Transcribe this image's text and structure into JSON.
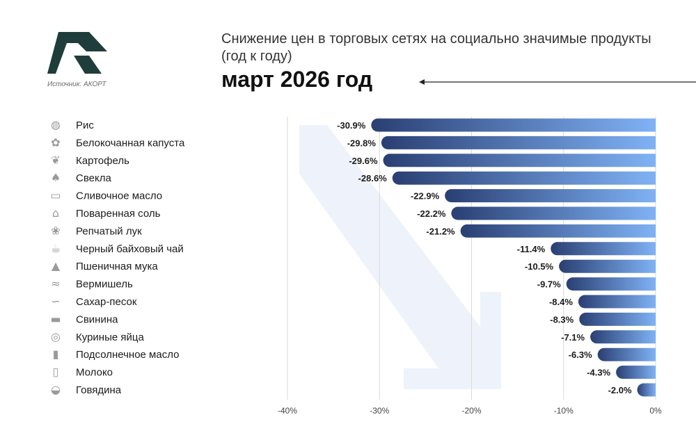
{
  "header": {
    "title": "Снижение цен в торговых сетях на социально значимые продукты (год к году)",
    "subtitle": "март 2026 год",
    "source": "Источник: АКОРТ"
  },
  "colors": {
    "bar_dark": "#2a3f73",
    "bar_light": "#7fb2f5",
    "logo": "#1f3d3a",
    "watermark": "#eef2fa"
  },
  "chart_data": {
    "type": "bar",
    "orientation": "horizontal",
    "categories": [
      "Рис",
      "Белокочанная капуста",
      "Картофель",
      "Свекла",
      "Сливочное масло",
      "Поваренная соль",
      "Репчатый лук",
      "Черный байховый чай",
      "Пшеничная мука",
      "Вермишель",
      "Сахар-песок",
      "Свинина",
      "Куриные яйца",
      "Подсолнечное масло",
      "Молоко",
      "Говядина"
    ],
    "values": [
      -30.9,
      -29.8,
      -29.6,
      -28.6,
      -22.9,
      -22.2,
      -21.2,
      -11.4,
      -10.5,
      -9.7,
      -8.4,
      -8.3,
      -7.1,
      -6.3,
      -4.3,
      -2.0
    ],
    "value_labels": [
      "-30.9%",
      "-29.8%",
      "-29.6%",
      "-28.6%",
      "-22.9%",
      "-22.2%",
      "-21.2%",
      "-11.4%",
      "-10.5%",
      "-9.7%",
      "-8.4%",
      "-8.3%",
      "-7.1%",
      "-6.3%",
      "-4.3%",
      "-2.0%"
    ],
    "icons": [
      "rice-bowl-icon",
      "cabbage-icon",
      "potato-icon",
      "beet-icon",
      "butter-icon",
      "salt-icon",
      "onion-icon",
      "tea-icon",
      "flour-icon",
      "noodles-icon",
      "sugar-icon",
      "pork-icon",
      "eggs-icon",
      "oil-bottle-icon",
      "milk-icon",
      "beef-icon"
    ],
    "xlim": [
      -40,
      0
    ],
    "xticks": [
      -40,
      -30,
      -20,
      -10,
      0
    ],
    "xtick_labels": [
      "-40%",
      "-30%",
      "-20%",
      "-10%",
      "0%"
    ],
    "grid": true,
    "legend": "none"
  }
}
